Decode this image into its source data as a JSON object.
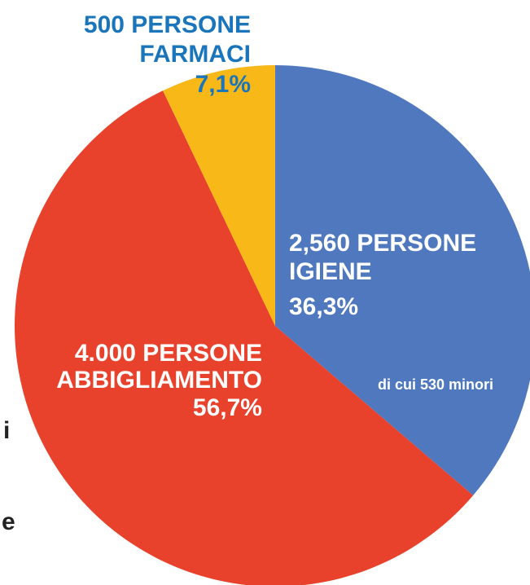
{
  "chart_data": {
    "type": "pie",
    "persons": [
      "2,560 PERSONE",
      "4.000 PERSONE",
      "500 PERSONE"
    ],
    "categories": [
      "IGIENE",
      "ABBIGLIAMENTO",
      "FARMACI"
    ],
    "values": [
      36.3,
      56.7,
      7.1
    ],
    "value_labels": [
      "36,3%",
      "56,7%",
      "7,1%"
    ],
    "colors": [
      "#5078be",
      "#e8412c",
      "#f7b818"
    ],
    "label_colors": [
      "#ffffff",
      "#ffffff",
      "#1a75bb"
    ],
    "annotation": "di cui 530 minori",
    "cropped_text": [
      "i",
      "e"
    ]
  }
}
